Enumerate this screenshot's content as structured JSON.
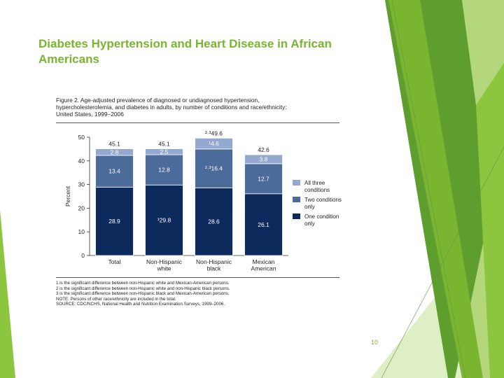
{
  "slide": {
    "title": "Diabetes Hypertension and Heart Disease in African Americans",
    "page_number": "10",
    "accent_color": "#7ab530"
  },
  "figure": {
    "caption_lines": [
      "Figure 2. Age-adjusted prevalence of diagnosed or undiagnosed hypertension,",
      "hypercholesterolemia, and diabetes in adults, by number of conditions and race/ethnicity:",
      "United States, 1999–2006"
    ],
    "notes": [
      "1 is the significant difference between non-Hispanic white and Mexican-American persons.",
      "2 is the significant difference between non-Hispanic white and non-Hispanic black persons.",
      "3 is the significant difference between non-Hispanic black and Mexican-American persons.",
      "NOTE: Persons of other race/ethnicity are included in the total.",
      "SOURCE: CDC/NCHS, National Health and Nutrition Examination Surveys, 1999–2006."
    ]
  },
  "chart_data": {
    "type": "bar",
    "stacked": true,
    "ylabel": "Percent",
    "ylim": [
      0,
      50
    ],
    "yticks": [
      0,
      10,
      20,
      30,
      40,
      50
    ],
    "grid": false,
    "legend_position": "right",
    "categories": [
      [
        "Total"
      ],
      [
        "Non-Hispanic",
        "white"
      ],
      [
        "Non-Hispanic",
        "black"
      ],
      [
        "Mexican",
        "American"
      ]
    ],
    "series": [
      {
        "name": "One condition only",
        "color": "#0c2a5c",
        "values": [
          28.9,
          29.8,
          28.6,
          26.1
        ],
        "labels": [
          "28.9",
          "¹29.8",
          "28.6",
          "26.1"
        ],
        "label_color": "#ffffff"
      },
      {
        "name": "Two conditions only",
        "color": "#4b6b9a",
        "values": [
          13.4,
          12.8,
          16.4,
          12.7
        ],
        "labels": [
          "13.4",
          "12.8",
          "²·³16.4",
          "12.7"
        ],
        "label_color": "#ffffff"
      },
      {
        "name": "All three conditions",
        "color": "#93a9cf",
        "values": [
          2.8,
          2.5,
          4.6,
          3.8
        ],
        "labels": [
          "2.8",
          "2.5",
          "¹4.6",
          "3.8"
        ],
        "label_color": "#ffffff"
      }
    ],
    "totals": [
      45.1,
      45.1,
      49.6,
      42.6
    ],
    "total_labels": [
      "45.1",
      "45.1",
      "²·³49.6",
      "42.6"
    ],
    "legend": [
      {
        "label": [
          "All three",
          "conditions"
        ],
        "color": "#93a9cf"
      },
      {
        "label": [
          "Two conditions",
          "only"
        ],
        "color": "#4b6b9a"
      },
      {
        "label": [
          "One condition",
          "only"
        ],
        "color": "#0c2a5c"
      }
    ]
  }
}
